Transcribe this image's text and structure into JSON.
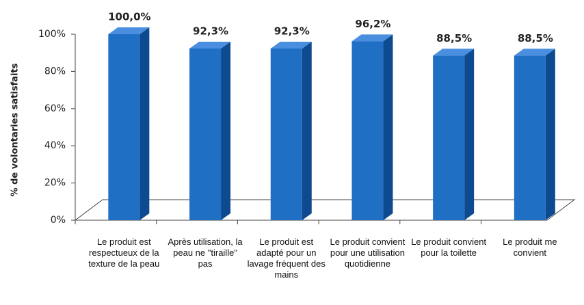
{
  "chart_data": {
    "type": "bar3d",
    "ylabel": "% de volontaries satisfaits",
    "categories": [
      "Le produit est respectueux de la texture de la peau",
      "Après utilisation, la peau ne \"tiraille\" pas",
      "Le produit est adapté pour un lavage fréquent des mains",
      "Le produit convient pour une utilisation quotidienne",
      "Le produit convient pour la toilette",
      "Le produit me convient"
    ],
    "values": [
      100,
      92.3,
      92.3,
      96.2,
      88.5,
      88.5
    ],
    "value_labels": [
      "100,0%",
      "92,3%",
      "92,3%",
      "96,2%",
      "88,5%",
      "88,5%"
    ],
    "color": "#1f6fc5",
    "ylim": [
      0,
      100
    ],
    "yticks": [
      {
        "value": 0,
        "label": "0%"
      },
      {
        "value": 20,
        "label": "20%"
      },
      {
        "value": 40,
        "label": "40%"
      },
      {
        "value": 60,
        "label": "60%"
      },
      {
        "value": 80,
        "label": "80%"
      },
      {
        "value": 100,
        "label": "100%"
      }
    ]
  }
}
